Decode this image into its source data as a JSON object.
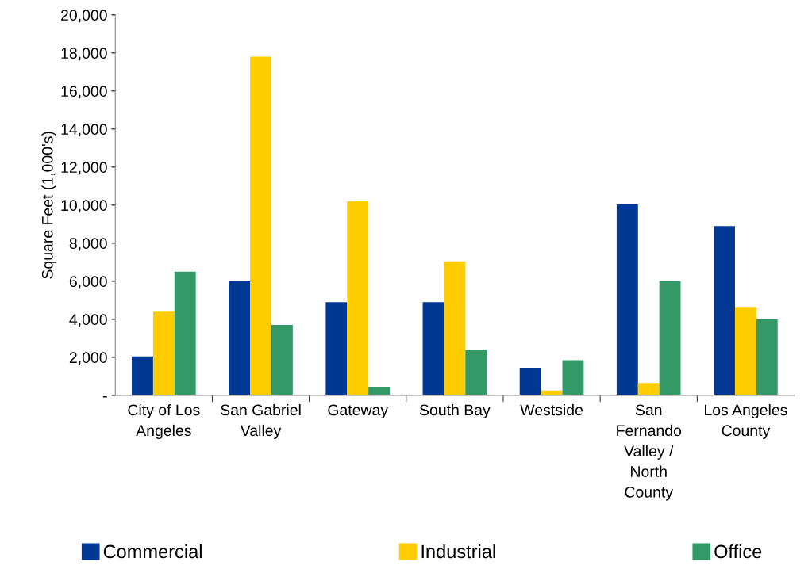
{
  "chart_data": {
    "type": "bar",
    "ylabel": "Square Feet (1,000's)",
    "categories": [
      "City of Los Angeles",
      "San Gabriel Valley",
      "Gateway",
      "South Bay",
      "Westside",
      "San Fernando Valley / North County",
      "Los Angeles County"
    ],
    "series": [
      {
        "name": "Commercial",
        "color": "#003893",
        "values": [
          2050,
          6000,
          4900,
          4900,
          1450,
          10050,
          8900
        ]
      },
      {
        "name": "Industrial",
        "color": "#ffcc00",
        "values": [
          4400,
          17800,
          10200,
          7050,
          250,
          650,
          4650
        ]
      },
      {
        "name": "Office",
        "color": "#339966",
        "values": [
          6500,
          3700,
          450,
          2400,
          1850,
          6000,
          4000
        ]
      }
    ],
    "ylim": [
      0,
      20000
    ],
    "yticks": [
      {
        "value": 0,
        "label": "-"
      },
      {
        "value": 2000,
        "label": "2,000"
      },
      {
        "value": 4000,
        "label": "4,000"
      },
      {
        "value": 6000,
        "label": "6,000"
      },
      {
        "value": 8000,
        "label": "8,000"
      },
      {
        "value": 10000,
        "label": "10,000"
      },
      {
        "value": 12000,
        "label": "12,000"
      },
      {
        "value": 14000,
        "label": "14,000"
      },
      {
        "value": 16000,
        "label": "16,000"
      },
      {
        "value": 18000,
        "label": "18,000"
      },
      {
        "value": 20000,
        "label": "20,000"
      }
    ],
    "grid": false,
    "legend": "bottom"
  }
}
